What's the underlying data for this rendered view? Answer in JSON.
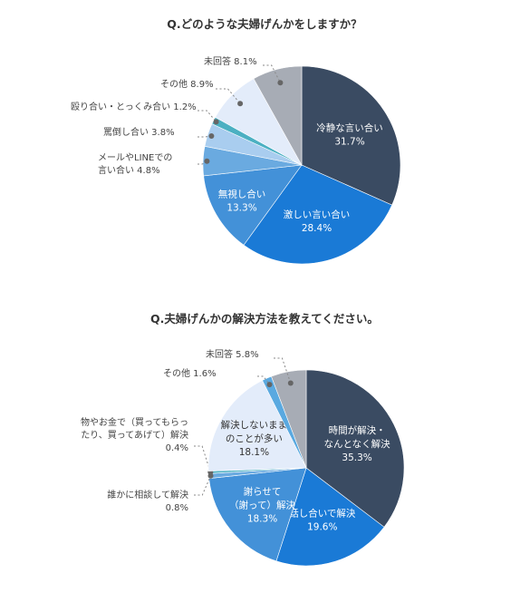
{
  "chart_data": [
    {
      "type": "pie",
      "title": "Q.どのような夫婦げんかをしますか？",
      "slices": [
        {
          "label_lines": [
            "冷静な言い合い"
          ],
          "value_text": "31.7%",
          "value": 31.7,
          "color": "#3a4b62",
          "text": "light"
        },
        {
          "label_lines": [
            "激しい言い合い"
          ],
          "value_text": "28.4%",
          "value": 28.4,
          "color": "#1a7ad6",
          "text": "light"
        },
        {
          "label_lines": [
            "無視し合い"
          ],
          "value_text": "13.3%",
          "value": 13.3,
          "color": "#4391d8",
          "text": "light"
        },
        {
          "label_lines": [
            "メールやLINEでの",
            "言い合い"
          ],
          "value_text": "4.8%",
          "value": 4.8,
          "color": "#6aaae0",
          "text": "callout"
        },
        {
          "label_lines": [
            "罵倒し合い"
          ],
          "value_text": "3.8%",
          "value": 3.8,
          "color": "#a9cdef",
          "text": "callout"
        },
        {
          "label_lines": [
            "殴り合い・とっくみ合い"
          ],
          "value_text": "1.2%",
          "value": 1.2,
          "color": "#4bb0c2",
          "text": "callout"
        },
        {
          "label_lines": [
            "その他"
          ],
          "value_text": "8.9%",
          "value": 8.9,
          "color": "#e3ecfa",
          "text": "callout"
        },
        {
          "label_lines": [
            "未回答"
          ],
          "value_text": "8.1%",
          "value": 8.1,
          "color": "#a7acb5",
          "text": "callout"
        }
      ]
    },
    {
      "type": "pie",
      "title": "Q.夫婦げんかの解決方法を教えてください。",
      "slices": [
        {
          "label_lines": [
            "時間が解決・",
            "なんとなく解決"
          ],
          "value_text": "35.3%",
          "value": 35.3,
          "color": "#3a4b62",
          "text": "light"
        },
        {
          "label_lines": [
            "話し合いで解決"
          ],
          "value_text": "19.6%",
          "value": 19.6,
          "color": "#1a7ad6",
          "text": "light"
        },
        {
          "label_lines": [
            "謝らせて",
            "（謝って）解決"
          ],
          "value_text": "18.3%",
          "value": 18.3,
          "color": "#4391d8",
          "text": "light"
        },
        {
          "label_lines": [
            "誰かに相談して解決"
          ],
          "value_text": "0.8%",
          "value": 0.8,
          "color": "#6aaae0",
          "text": "callout"
        },
        {
          "label_lines": [
            "物やお金で（買ってもらっ",
            "たり、買ってあげて）解決"
          ],
          "value_text": "0.4%",
          "value": 0.4,
          "color": "#4bb0c2",
          "text": "callout"
        },
        {
          "label_lines": [
            "解決しないまま",
            "のことが多い"
          ],
          "value_text": "18.1%",
          "value": 18.1,
          "color": "#e3ecfa",
          "text": "dark"
        },
        {
          "label_lines": [
            "その他"
          ],
          "value_text": "1.6%",
          "value": 1.6,
          "color": "#5aa9e0",
          "text": "callout"
        },
        {
          "label_lines": [
            "未回答"
          ],
          "value_text": "5.8%",
          "value": 5.8,
          "color": "#a7acb5",
          "text": "callout"
        }
      ]
    }
  ]
}
